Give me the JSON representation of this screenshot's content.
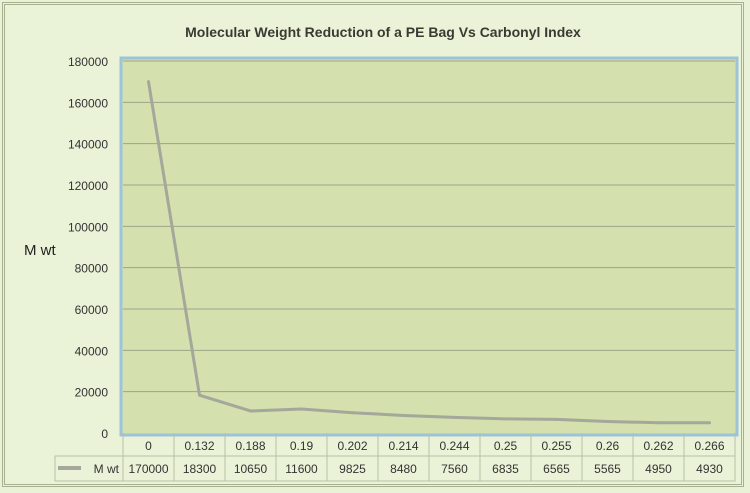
{
  "chart_data": {
    "type": "line",
    "title": "Molecular Weight Reduction of a PE Bag Vs Carbonyl Index",
    "xlabel": "",
    "ylabel": "M wt",
    "categories": [
      "0",
      "0.132",
      "0.188",
      "0.19",
      "0.202",
      "0.214",
      "0.244",
      "0.25",
      "0.255",
      "0.26",
      "0.262",
      "0.266"
    ],
    "series": [
      {
        "name": "M wt",
        "values": [
          170000,
          18300,
          10650,
          11600,
          9825,
          8480,
          7560,
          6835,
          6565,
          5565,
          4950,
          4930
        ],
        "color": "#a3a89a"
      }
    ],
    "ylim": [
      0,
      180000
    ],
    "yticks": [
      0,
      20000,
      40000,
      60000,
      80000,
      100000,
      120000,
      140000,
      160000,
      180000
    ],
    "grid": true,
    "legend": "data-table",
    "colors": {
      "plot_bg": "#d4e0ad",
      "plot_border": "#9dc3d9",
      "grid": "#9ea58a"
    }
  }
}
